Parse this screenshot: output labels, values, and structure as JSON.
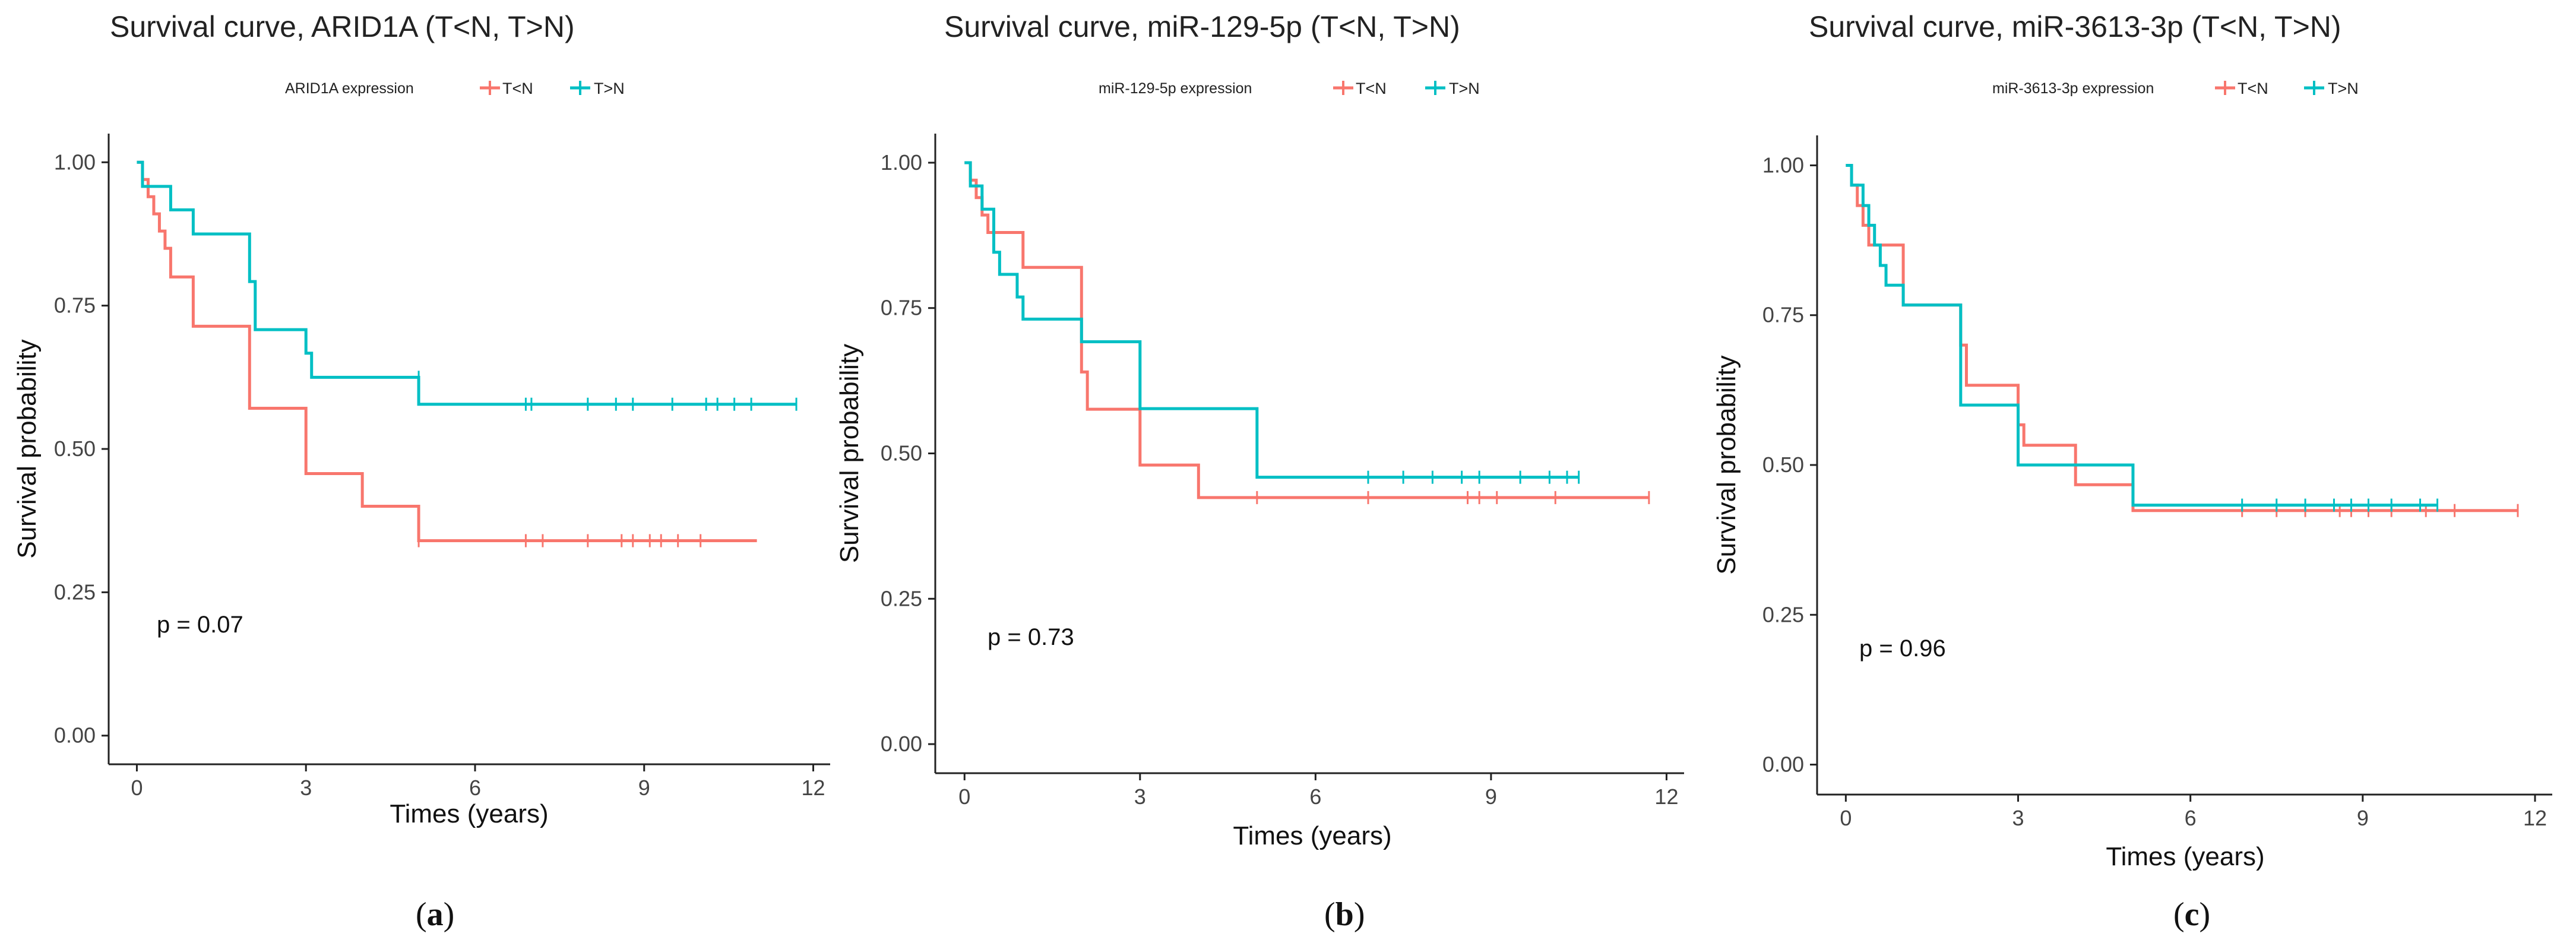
{
  "chart_data": [
    {
      "type": "line",
      "title": "Survival curve, ARID1A (T<N, T>N)",
      "subfigure_label": [
        "(",
        "a",
        ")"
      ],
      "xlabel": "Times (years)",
      "ylabel": "Survival probability",
      "xlim": [
        -0.5,
        12.3
      ],
      "ylim": [
        -0.05,
        1.05
      ],
      "xticks": [
        0,
        3,
        6,
        9,
        12
      ],
      "yticks": [
        0.0,
        0.25,
        0.5,
        0.75,
        1.0
      ],
      "ytick_labels": [
        "0.00",
        "0.25",
        "0.50",
        "0.75",
        "1.00"
      ],
      "grid": false,
      "legend": {
        "title": "ARID1A expression",
        "position": "top"
      },
      "annotation": "p = 0.07",
      "series": [
        {
          "name": "T<N",
          "color": "#F8766D",
          "step": true,
          "x": [
            0,
            0.1,
            0.2,
            0.3,
            0.4,
            0.5,
            0.6,
            0.8,
            1.0,
            2.0,
            3.0,
            4.0,
            5.0,
            11.0
          ],
          "y": [
            1.0,
            0.97,
            0.94,
            0.91,
            0.88,
            0.85,
            0.8,
            0.8,
            0.714,
            0.571,
            0.457,
            0.4,
            0.34,
            0.34
          ],
          "censored_x": [
            5.0,
            6.9,
            7.2,
            8.0,
            8.6,
            8.8,
            9.1,
            9.3,
            9.6,
            10.0
          ],
          "censored_y": [
            0.34,
            0.34,
            0.34,
            0.34,
            0.34,
            0.34,
            0.34,
            0.34,
            0.34,
            0.34
          ]
        },
        {
          "name": "T>N",
          "color": "#00BFC4",
          "step": true,
          "x": [
            0,
            0.1,
            0.6,
            1.0,
            2.0,
            2.1,
            3.0,
            3.1,
            5.0,
            11.7
          ],
          "y": [
            1.0,
            0.958,
            0.917,
            0.875,
            0.792,
            0.708,
            0.667,
            0.625,
            0.578,
            0.578
          ],
          "censored_x": [
            5.0,
            6.9,
            7.0,
            8.0,
            8.5,
            8.8,
            9.5,
            10.1,
            10.3,
            10.6,
            10.9,
            11.7
          ],
          "censored_y": [
            0.625,
            0.578,
            0.578,
            0.578,
            0.578,
            0.578,
            0.578,
            0.578,
            0.578,
            0.578,
            0.578,
            0.578
          ]
        }
      ]
    },
    {
      "type": "line",
      "title": "Survival curve, miR-129-5p (T<N, T>N)",
      "subfigure_label": [
        "(",
        "b",
        ")"
      ],
      "xlabel": "Times (years)",
      "ylabel": "Survival probability",
      "xlim": [
        -0.5,
        12.3
      ],
      "ylim": [
        -0.05,
        1.05
      ],
      "xticks": [
        0,
        3,
        6,
        9,
        12
      ],
      "yticks": [
        0.0,
        0.25,
        0.5,
        0.75,
        1.0
      ],
      "ytick_labels": [
        "0.00",
        "0.25",
        "0.50",
        "0.75",
        "1.00"
      ],
      "grid": false,
      "legend": {
        "title": "miR-129-5p expression",
        "position": "top"
      },
      "annotation": "p = 0.73",
      "series": [
        {
          "name": "T<N",
          "color": "#F8766D",
          "step": true,
          "x": [
            0,
            0.1,
            0.2,
            0.3,
            0.4,
            0.5,
            0.6,
            1.0,
            2.0,
            2.1,
            3.0,
            4.0,
            11.7
          ],
          "y": [
            1.0,
            0.97,
            0.94,
            0.91,
            0.88,
            0.88,
            0.88,
            0.82,
            0.64,
            0.576,
            0.48,
            0.424,
            0.424
          ],
          "censored_x": [
            5.0,
            6.9,
            8.6,
            8.8,
            9.1,
            10.1,
            11.7
          ],
          "censored_y": [
            0.424,
            0.424,
            0.424,
            0.424,
            0.424,
            0.424,
            0.424
          ]
        },
        {
          "name": "T>N",
          "color": "#00BFC4",
          "step": true,
          "x": [
            0,
            0.1,
            0.3,
            0.5,
            0.6,
            0.9,
            1.0,
            2.0,
            3.0,
            5.0,
            10.5
          ],
          "y": [
            1.0,
            0.96,
            0.92,
            0.846,
            0.808,
            0.769,
            0.731,
            0.692,
            0.577,
            0.459,
            0.459
          ],
          "censored_x": [
            5.0,
            6.9,
            7.5,
            8.0,
            8.5,
            8.8,
            9.5,
            10.0,
            10.3,
            10.5
          ],
          "censored_y": [
            0.505,
            0.459,
            0.459,
            0.459,
            0.459,
            0.459,
            0.459,
            0.459,
            0.459,
            0.459
          ]
        }
      ]
    },
    {
      "type": "line",
      "title": "Survival curve, miR-3613-3p (T<N, T>N)",
      "subfigure_label": [
        "(",
        "c",
        ")"
      ],
      "xlabel": "Times (years)",
      "ylabel": "Survival probability",
      "xlim": [
        -0.5,
        12.3
      ],
      "ylim": [
        -0.05,
        1.05
      ],
      "xticks": [
        0,
        3,
        6,
        9,
        12
      ],
      "yticks": [
        0.0,
        0.25,
        0.5,
        0.75,
        1.0
      ],
      "ytick_labels": [
        "0.00",
        "0.25",
        "0.50",
        "0.75",
        "1.00"
      ],
      "grid": false,
      "legend": {
        "title": "miR-3613-3p expression",
        "position": "top"
      },
      "annotation": "p = 0.96",
      "series": [
        {
          "name": "T<N",
          "color": "#F8766D",
          "step": true,
          "x": [
            0,
            0.1,
            0.2,
            0.3,
            0.4,
            0.5,
            0.7,
            1.0,
            2.0,
            2.1,
            3.0,
            3.1,
            4.0,
            5.0,
            11.7
          ],
          "y": [
            1.0,
            0.967,
            0.933,
            0.9,
            0.867,
            0.867,
            0.867,
            0.767,
            0.7,
            0.633,
            0.567,
            0.533,
            0.467,
            0.424,
            0.424
          ],
          "censored_x": [
            5.0,
            6.9,
            7.5,
            8.0,
            8.6,
            8.8,
            9.1,
            9.5,
            10.1,
            10.6,
            11.7
          ],
          "censored_y": [
            0.467,
            0.424,
            0.424,
            0.424,
            0.424,
            0.424,
            0.424,
            0.424,
            0.424,
            0.424,
            0.424
          ]
        },
        {
          "name": "T>N",
          "color": "#00BFC4",
          "step": true,
          "x": [
            0,
            0.1,
            0.3,
            0.4,
            0.5,
            0.6,
            0.7,
            1.0,
            2.0,
            3.0,
            5.0,
            10.3
          ],
          "y": [
            1.0,
            0.967,
            0.933,
            0.9,
            0.867,
            0.833,
            0.8,
            0.767,
            0.6,
            0.5,
            0.433,
            0.433
          ],
          "censored_x": [
            6.9,
            7.5,
            8.0,
            8.5,
            8.8,
            9.1,
            9.5,
            10.0,
            10.3
          ],
          "censored_y": [
            0.433,
            0.433,
            0.433,
            0.433,
            0.433,
            0.433,
            0.433,
            0.433,
            0.433
          ]
        }
      ]
    }
  ]
}
